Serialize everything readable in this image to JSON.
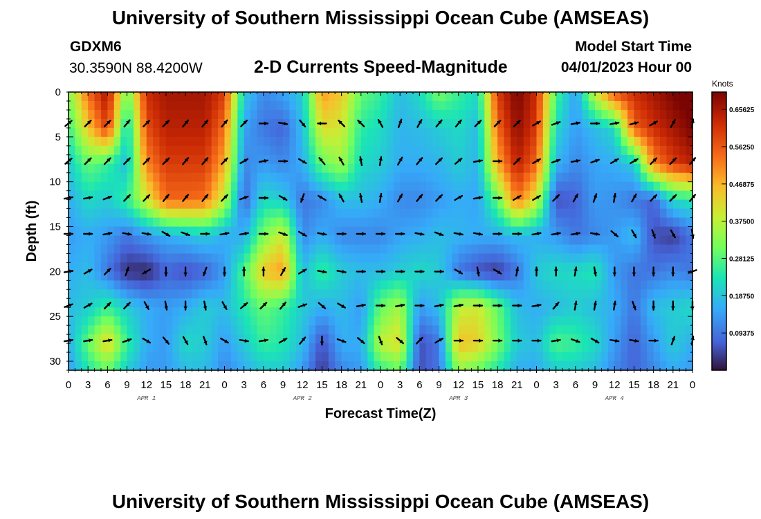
{
  "header": {
    "title": "University of Southern Mississippi Ocean Cube (AMSEAS)",
    "station": "GDXM6",
    "coords": "30.3590N  88.4200W",
    "plot_title": "2-D Currents Speed-Magnitude",
    "model_start_label": "Model Start Time",
    "model_start_value": "04/01/2023 Hour 00"
  },
  "footer": {
    "title": "University of Southern Mississippi Ocean Cube (AMSEAS)"
  },
  "colors": {
    "scale": [
      "#30123b",
      "#4662d7",
      "#36aaf9",
      "#1ae4b6",
      "#72fe5e",
      "#c7ef34",
      "#fabc2a",
      "#f66b19",
      "#cb2a04",
      "#7a0403"
    ]
  },
  "chart_data": {
    "type": "heatmap",
    "title": "2-D Currents Speed-Magnitude",
    "xlabel": "Forecast Time(Z)",
    "ylabel": "Depth (ft)",
    "x_tick_labels": [
      "0",
      "3",
      "6",
      "9",
      "12",
      "15",
      "18",
      "21",
      "0",
      "3",
      "6",
      "9",
      "12",
      "15",
      "18",
      "21",
      "0",
      "3",
      "6",
      "9",
      "12",
      "15",
      "18",
      "21",
      "0",
      "3",
      "6",
      "9",
      "12",
      "15",
      "18",
      "21",
      "0"
    ],
    "day_labels": [
      {
        "label": "APR 1",
        "hour": 12
      },
      {
        "label": "APR 2",
        "hour": 36
      },
      {
        "label": "APR 3",
        "hour": 60
      },
      {
        "label": "APR 4",
        "hour": 84
      }
    ],
    "xlim": [
      0,
      96
    ],
    "ylim": [
      0,
      31
    ],
    "y_ticks": [
      0,
      5,
      10,
      15,
      20,
      25,
      30
    ],
    "colorbar": {
      "unit": "Knots",
      "range": [
        0.0,
        0.7
      ],
      "tick_labels": [
        "0.65625",
        "0.56250",
        "0.46875",
        "0.37500",
        "0.28125",
        "0.18750",
        "0.09375"
      ],
      "tick_values": [
        0.65625,
        0.5625,
        0.46875,
        0.375,
        0.28125,
        0.1875,
        0.09375
      ]
    },
    "speed_hours": [
      0,
      3,
      6,
      9,
      12,
      15,
      18,
      21,
      24,
      27,
      30,
      33,
      36,
      39,
      42,
      45,
      48,
      51,
      54,
      57,
      60,
      63,
      66,
      69,
      72,
      75,
      78,
      81,
      84,
      87,
      90,
      93,
      96
    ],
    "speed_depths": [
      0,
      4,
      8,
      12,
      16,
      20,
      24,
      28,
      31
    ],
    "speed_knots": [
      [
        0.32,
        0.55,
        0.66,
        0.3,
        0.62,
        0.66,
        0.66,
        0.66,
        0.6,
        0.2,
        0.12,
        0.15,
        0.2,
        0.5,
        0.45,
        0.3,
        0.26,
        0.18,
        0.22,
        0.32,
        0.26,
        0.22,
        0.6,
        0.7,
        0.62,
        0.28,
        0.14,
        0.4,
        0.58,
        0.62,
        0.66,
        0.7,
        0.72
      ],
      [
        0.26,
        0.45,
        0.6,
        0.2,
        0.58,
        0.64,
        0.64,
        0.64,
        0.54,
        0.15,
        0.1,
        0.08,
        0.18,
        0.42,
        0.4,
        0.25,
        0.22,
        0.17,
        0.18,
        0.2,
        0.22,
        0.18,
        0.55,
        0.68,
        0.6,
        0.22,
        0.14,
        0.18,
        0.22,
        0.56,
        0.62,
        0.66,
        0.7
      ],
      [
        0.2,
        0.3,
        0.26,
        0.18,
        0.52,
        0.6,
        0.6,
        0.6,
        0.48,
        0.12,
        0.14,
        0.12,
        0.16,
        0.3,
        0.35,
        0.22,
        0.2,
        0.16,
        0.16,
        0.17,
        0.2,
        0.17,
        0.48,
        0.64,
        0.55,
        0.17,
        0.12,
        0.15,
        0.16,
        0.2,
        0.52,
        0.6,
        0.64
      ],
      [
        0.16,
        0.22,
        0.2,
        0.26,
        0.4,
        0.55,
        0.55,
        0.54,
        0.38,
        0.08,
        0.22,
        0.2,
        0.1,
        0.12,
        0.18,
        0.18,
        0.16,
        0.12,
        0.12,
        0.14,
        0.16,
        0.15,
        0.3,
        0.54,
        0.4,
        0.06,
        0.08,
        0.14,
        0.13,
        0.1,
        0.08,
        0.22,
        0.24
      ],
      [
        0.14,
        0.16,
        0.14,
        0.1,
        0.14,
        0.16,
        0.18,
        0.2,
        0.16,
        0.16,
        0.32,
        0.4,
        0.12,
        0.16,
        0.12,
        0.12,
        0.12,
        0.15,
        0.16,
        0.18,
        0.17,
        0.16,
        0.16,
        0.18,
        0.16,
        0.14,
        0.1,
        0.12,
        0.14,
        0.18,
        0.06,
        0.04,
        0.1
      ],
      [
        0.16,
        0.18,
        0.1,
        0.03,
        0.02,
        0.08,
        0.06,
        0.08,
        0.14,
        0.28,
        0.45,
        0.5,
        0.18,
        0.26,
        0.2,
        0.18,
        0.18,
        0.2,
        0.22,
        0.2,
        0.1,
        0.06,
        0.04,
        0.1,
        0.2,
        0.22,
        0.22,
        0.24,
        0.14,
        0.1,
        0.1,
        0.12,
        0.1
      ],
      [
        0.18,
        0.2,
        0.26,
        0.2,
        0.16,
        0.14,
        0.16,
        0.2,
        0.18,
        0.24,
        0.3,
        0.26,
        0.2,
        0.16,
        0.18,
        0.14,
        0.3,
        0.36,
        0.14,
        0.18,
        0.38,
        0.4,
        0.3,
        0.18,
        0.16,
        0.18,
        0.2,
        0.18,
        0.16,
        0.1,
        0.18,
        0.2,
        0.22
      ],
      [
        0.16,
        0.3,
        0.44,
        0.26,
        0.16,
        0.14,
        0.22,
        0.2,
        0.14,
        0.2,
        0.26,
        0.24,
        0.18,
        0.06,
        0.16,
        0.16,
        0.38,
        0.42,
        0.06,
        0.1,
        0.46,
        0.44,
        0.32,
        0.2,
        0.18,
        0.28,
        0.26,
        0.22,
        0.14,
        0.08,
        0.14,
        0.2,
        0.16
      ],
      [
        0.14,
        0.24,
        0.3,
        0.2,
        0.14,
        0.14,
        0.18,
        0.18,
        0.12,
        0.16,
        0.2,
        0.2,
        0.14,
        0.04,
        0.12,
        0.14,
        0.26,
        0.3,
        0.06,
        0.1,
        0.34,
        0.3,
        0.24,
        0.16,
        0.16,
        0.2,
        0.2,
        0.18,
        0.12,
        0.08,
        0.12,
        0.16,
        0.14
      ]
    ],
    "vector_depths": [
      3.5,
      7.7,
      11.8,
      15.8,
      20.0,
      23.8,
      27.7
    ],
    "vector_hours": [
      0,
      3,
      6,
      9,
      12,
      15,
      18,
      21,
      24,
      27,
      30,
      33,
      36,
      39,
      42,
      45,
      48,
      51,
      54,
      57,
      60,
      63,
      66,
      69,
      72,
      75,
      78,
      81,
      84,
      87,
      90,
      93,
      96
    ],
    "vector_dir_deg": [
      [
        50,
        45,
        45,
        40,
        45,
        45,
        40,
        40,
        40,
        45,
        90,
        100,
        140,
        270,
        315,
        315,
        330,
        20,
        30,
        40,
        40,
        45,
        45,
        45,
        60,
        70,
        80,
        90,
        80,
        75,
        60,
        30,
        10
      ],
      [
        50,
        45,
        45,
        45,
        45,
        45,
        40,
        40,
        45,
        60,
        80,
        90,
        120,
        320,
        330,
        350,
        10,
        30,
        40,
        45,
        50,
        80,
        90,
        45,
        60,
        70,
        80,
        70,
        60,
        60,
        45,
        45,
        40
      ],
      [
        80,
        80,
        70,
        45,
        45,
        40,
        40,
        40,
        45,
        70,
        90,
        120,
        200,
        300,
        330,
        350,
        10,
        30,
        40,
        45,
        60,
        80,
        90,
        60,
        60,
        45,
        30,
        20,
        10,
        30,
        45,
        45,
        40
      ],
      [
        90,
        90,
        80,
        100,
        100,
        120,
        110,
        90,
        80,
        80,
        90,
        110,
        120,
        100,
        90,
        90,
        90,
        90,
        100,
        110,
        100,
        100,
        90,
        90,
        80,
        80,
        80,
        100,
        130,
        150,
        160,
        150,
        170
      ],
      [
        80,
        60,
        45,
        20,
        240,
        180,
        180,
        200,
        180,
        0,
        0,
        30,
        60,
        100,
        100,
        90,
        90,
        90,
        90,
        90,
        120,
        170,
        120,
        10,
        0,
        0,
        10,
        170,
        180,
        180,
        180,
        180,
        250
      ],
      [
        70,
        60,
        45,
        45,
        150,
        170,
        180,
        170,
        150,
        50,
        45,
        40,
        70,
        130,
        120,
        80,
        90,
        80,
        90,
        80,
        80,
        90,
        90,
        90,
        80,
        40,
        10,
        10,
        10,
        160,
        180,
        180,
        180
      ],
      [
        80,
        80,
        80,
        70,
        120,
        140,
        150,
        160,
        120,
        100,
        80,
        60,
        40,
        180,
        110,
        130,
        160,
        130,
        45,
        60,
        90,
        90,
        90,
        90,
        90,
        80,
        110,
        120,
        100,
        100,
        90,
        20,
        10
      ]
    ],
    "vector_magnitude_on": true
  }
}
